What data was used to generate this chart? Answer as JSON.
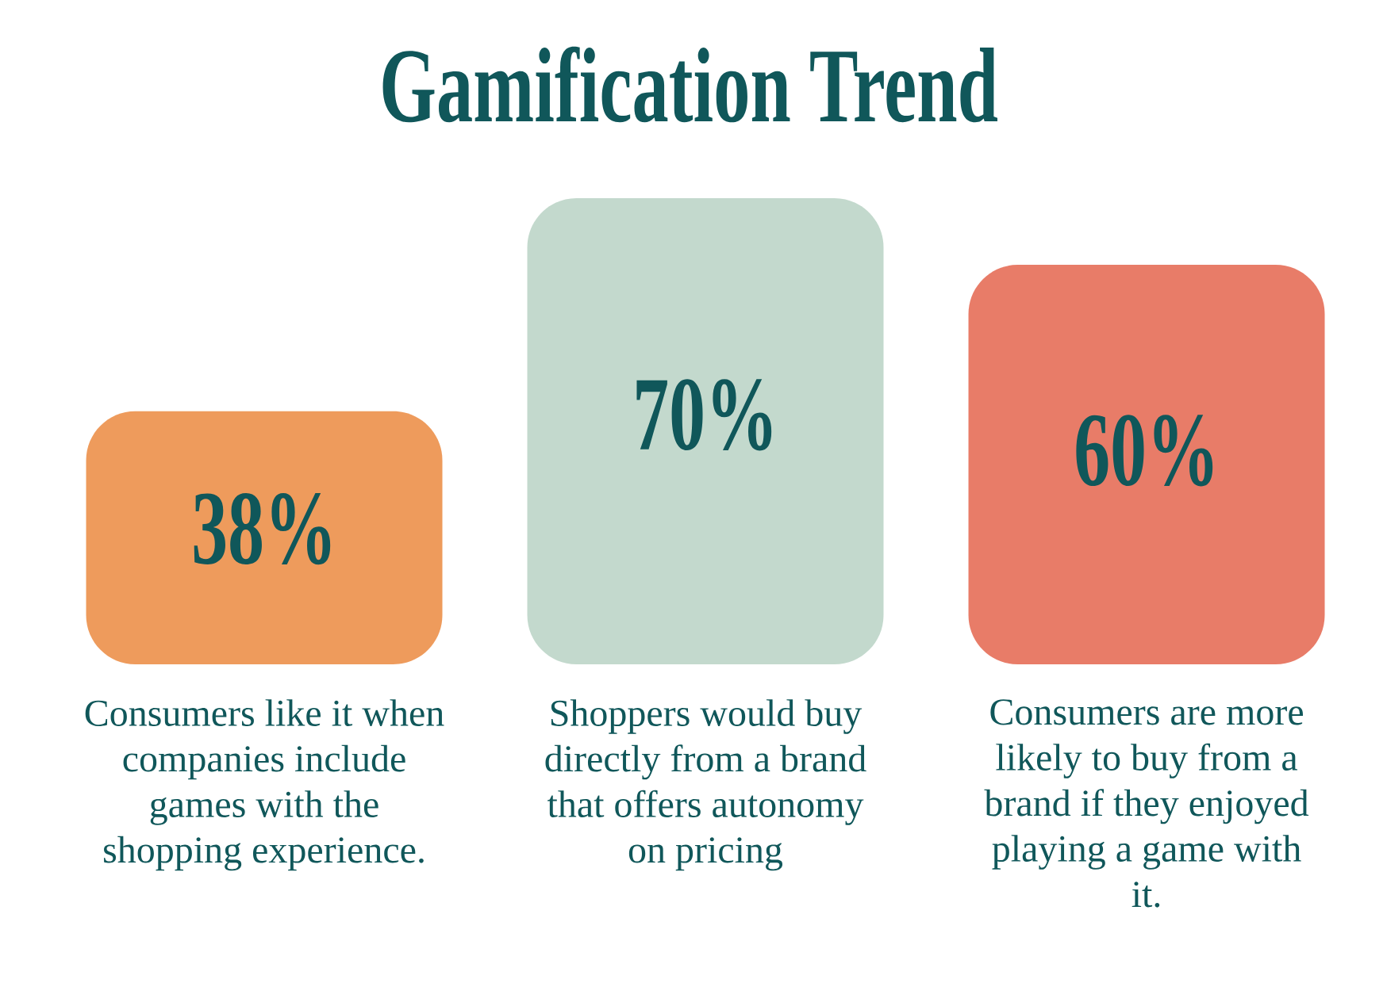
{
  "chart_data": {
    "type": "bar",
    "title": "Gamification Trend",
    "categories": [
      "Consumers like it when companies include games with the shopping experience.",
      "Shoppers would buy directly from a brand that offers autonomy on pricing",
      "Consumers are more likely to buy from a brand if they enjoyed playing a game with it."
    ],
    "values": [
      38,
      70,
      60
    ],
    "value_labels": [
      "38%",
      "70%",
      "60%"
    ],
    "colors": [
      "#ee9b5c",
      "#c3d9cd",
      "#e87c68"
    ]
  }
}
